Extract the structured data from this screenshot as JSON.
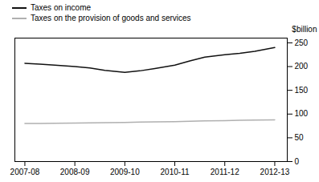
{
  "chart_data": {
    "type": "line",
    "x": [
      0,
      0.3,
      0.6,
      1.0,
      1.3,
      1.6,
      2.0,
      2.3,
      2.6,
      3.0,
      3.3,
      3.6,
      4.0,
      4.3,
      4.6,
      5.0
    ],
    "series": [
      {
        "name": "Taxes on income",
        "color": "#111111",
        "values": [
          207,
          205,
          203,
          200,
          197,
          192,
          188,
          191,
          196,
          203,
          212,
          220,
          225,
          228,
          232,
          240
        ]
      },
      {
        "name": "Taxes on the provision of goods and services",
        "color": "#b0b0b0",
        "values": [
          80,
          80,
          80.5,
          81,
          81.5,
          82,
          82.5,
          83,
          83.5,
          84,
          85,
          85.5,
          86,
          87,
          87.5,
          88
        ]
      }
    ],
    "xlim": [
      -0.2,
      5.25
    ],
    "xticks": [
      {
        "value": 0,
        "label": "2007-08"
      },
      {
        "value": 1,
        "label": "2008-09"
      },
      {
        "value": 2,
        "label": "2009-10"
      },
      {
        "value": 3,
        "label": "2010-11"
      },
      {
        "value": 4,
        "label": "2011-12"
      },
      {
        "value": 5,
        "label": "2012-13"
      }
    ],
    "ylabel": "$billion",
    "ylim": [
      0,
      260
    ],
    "yticks": [
      0,
      50,
      100,
      150,
      200,
      250
    ],
    "grid": false,
    "legend": "top"
  }
}
